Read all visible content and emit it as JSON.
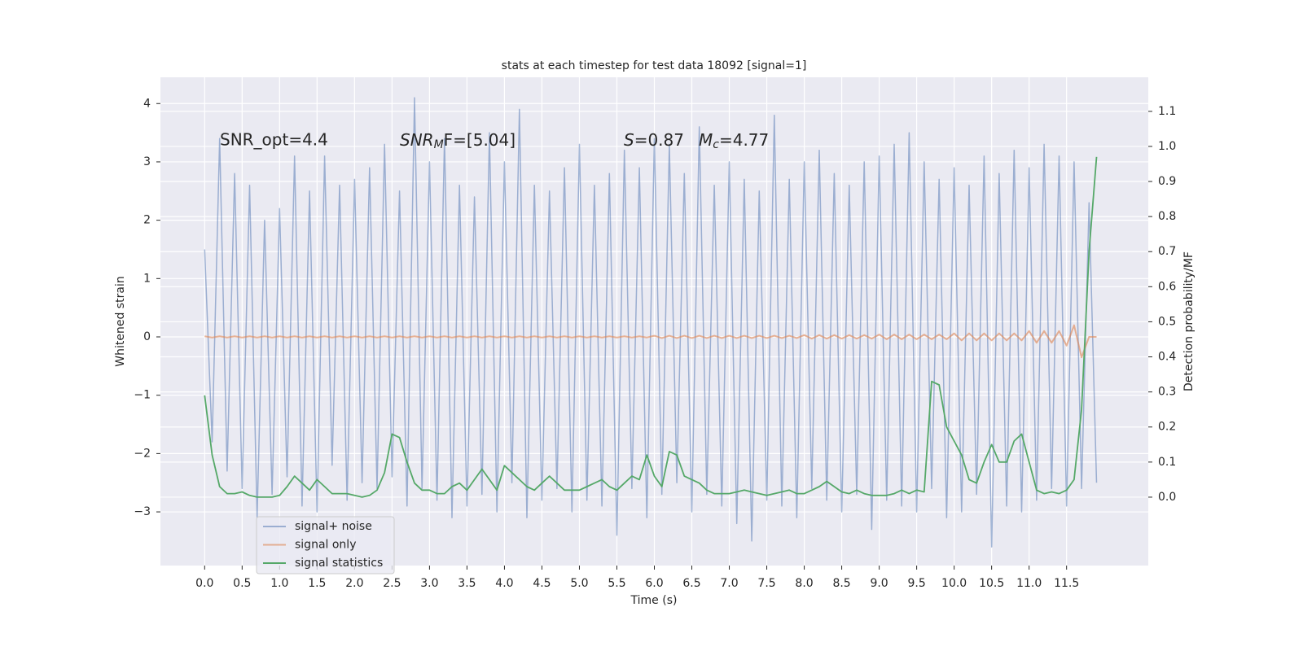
{
  "chart_data": {
    "type": "line",
    "title": "stats at each timestep for test data 18092 [signal=1]",
    "xlabel": "Time (s)",
    "ylabel": "Whitened strain",
    "y2label": "Detection probability/MF",
    "annotations": [
      {
        "text": "SNR_opt=4.4"
      },
      {
        "base": "SNR",
        "sub": "M",
        "rest": "F=[5.04]"
      },
      {
        "base": "S",
        "rest": "=0.87"
      },
      {
        "base": "M",
        "sub": "c",
        "rest": "=4.77"
      }
    ],
    "x": [
      0.0,
      0.1,
      0.2,
      0.3,
      0.4,
      0.5,
      0.6,
      0.7,
      0.8,
      0.9,
      1.0,
      1.1,
      1.2,
      1.3,
      1.4,
      1.5,
      1.6,
      1.7,
      1.8,
      1.9,
      2.0,
      2.1,
      2.2,
      2.3,
      2.4,
      2.5,
      2.6,
      2.7,
      2.8,
      2.9,
      3.0,
      3.1,
      3.2,
      3.3,
      3.4,
      3.5,
      3.6,
      3.7,
      3.8,
      3.9,
      4.0,
      4.1,
      4.2,
      4.3,
      4.4,
      4.5,
      4.6,
      4.7,
      4.8,
      4.9,
      5.0,
      5.1,
      5.2,
      5.3,
      5.4,
      5.5,
      5.6,
      5.7,
      5.8,
      5.9,
      6.0,
      6.1,
      6.2,
      6.3,
      6.4,
      6.5,
      6.6,
      6.7,
      6.8,
      6.9,
      7.0,
      7.1,
      7.2,
      7.3,
      7.4,
      7.5,
      7.6,
      7.7,
      7.8,
      7.9,
      8.0,
      8.1,
      8.2,
      8.3,
      8.4,
      8.5,
      8.6,
      8.7,
      8.8,
      8.9,
      9.0,
      9.1,
      9.2,
      9.3,
      9.4,
      9.5,
      9.6,
      9.7,
      9.8,
      9.9,
      10.0,
      10.1,
      10.2,
      10.3,
      10.4,
      10.5,
      10.6,
      10.7,
      10.8,
      10.9,
      11.0,
      11.1,
      11.2,
      11.3,
      11.4,
      11.5,
      11.6,
      11.7,
      11.8,
      11.9
    ],
    "series": [
      {
        "name": "signal+ noise",
        "color": "#4c72b0",
        "values": [
          1.5,
          -1.8,
          3.4,
          -2.3,
          2.8,
          -2.6,
          2.6,
          -3.1,
          2.0,
          -2.7,
          2.2,
          -2.4,
          3.1,
          -2.9,
          2.5,
          -3.0,
          3.1,
          -2.2,
          2.6,
          -2.8,
          2.7,
          -2.5,
          2.9,
          -2.6,
          3.3,
          -2.4,
          2.5,
          -2.9,
          4.1,
          -2.6,
          3.0,
          -2.8,
          3.4,
          -3.1,
          2.6,
          -2.9,
          2.4,
          -2.7,
          3.5,
          -3.0,
          3.0,
          -2.5,
          3.9,
          -3.1,
          2.6,
          -2.8,
          2.5,
          -2.6,
          2.9,
          -3.0,
          3.3,
          -2.8,
          2.6,
          -2.9,
          2.8,
          -3.4,
          3.2,
          -2.6,
          2.9,
          -3.1,
          3.4,
          -2.7,
          3.3,
          -2.5,
          2.8,
          -3.0,
          3.6,
          -2.7,
          2.6,
          -2.9,
          3.0,
          -3.2,
          2.7,
          -3.5,
          2.5,
          -2.8,
          3.8,
          -2.9,
          2.7,
          -3.1,
          3.0,
          -2.6,
          3.2,
          -2.8,
          2.8,
          -3.0,
          2.6,
          -2.7,
          3.0,
          -3.3,
          3.1,
          -2.8,
          3.3,
          -2.9,
          3.5,
          -3.0,
          3.0,
          -2.6,
          2.7,
          -3.1,
          2.9,
          -3.0,
          2.6,
          -2.7,
          3.1,
          -3.6,
          2.8,
          -2.9,
          3.2,
          -3.0,
          2.9,
          -2.8,
          3.3,
          -2.6,
          3.1,
          -2.9,
          3.0,
          -2.6,
          2.3,
          -2.5
        ]
      },
      {
        "name": "signal only",
        "color": "#dd8452",
        "values": [
          0.01,
          -0.01,
          0.01,
          -0.01,
          0.01,
          -0.01,
          0.01,
          -0.01,
          0.01,
          -0.01,
          0.01,
          -0.01,
          0.01,
          -0.01,
          0.01,
          -0.01,
          0.01,
          -0.01,
          0.01,
          -0.01,
          0.01,
          -0.01,
          0.01,
          -0.01,
          0.01,
          -0.01,
          0.01,
          -0.01,
          0.01,
          -0.01,
          0.01,
          -0.01,
          0.01,
          -0.01,
          0.01,
          -0.01,
          0.01,
          -0.01,
          0.01,
          -0.01,
          0.01,
          -0.01,
          0.01,
          -0.01,
          0.01,
          -0.01,
          0.01,
          -0.01,
          0.01,
          -0.01,
          0.01,
          -0.01,
          0.01,
          -0.01,
          0.01,
          -0.01,
          0.01,
          -0.01,
          0.01,
          -0.01,
          0.02,
          -0.02,
          0.02,
          -0.02,
          0.02,
          -0.02,
          0.02,
          -0.02,
          0.02,
          -0.02,
          0.02,
          -0.02,
          0.02,
          -0.02,
          0.02,
          -0.02,
          0.02,
          -0.02,
          0.02,
          -0.02,
          0.03,
          -0.03,
          0.03,
          -0.03,
          0.03,
          -0.03,
          0.03,
          -0.03,
          0.03,
          -0.03,
          0.04,
          -0.04,
          0.04,
          -0.04,
          0.04,
          -0.04,
          0.04,
          -0.04,
          0.04,
          -0.04,
          0.06,
          -0.06,
          0.06,
          -0.06,
          0.06,
          -0.06,
          0.06,
          -0.06,
          0.06,
          -0.06,
          0.1,
          -0.1,
          0.1,
          -0.1,
          0.1,
          -0.15,
          0.2,
          -0.35,
          0.0,
          0.0
        ]
      },
      {
        "name": "signal statistics",
        "color": "#55a868",
        "axis": "y2",
        "values": [
          0.29,
          0.12,
          0.03,
          0.01,
          0.01,
          0.015,
          0.005,
          0.0,
          0.0,
          0.0,
          0.005,
          0.03,
          0.06,
          0.04,
          0.02,
          0.05,
          0.03,
          0.01,
          0.01,
          0.01,
          0.005,
          0.0,
          0.005,
          0.02,
          0.07,
          0.18,
          0.17,
          0.1,
          0.04,
          0.02,
          0.02,
          0.01,
          0.01,
          0.03,
          0.04,
          0.02,
          0.05,
          0.08,
          0.05,
          0.02,
          0.09,
          0.07,
          0.05,
          0.03,
          0.02,
          0.04,
          0.06,
          0.04,
          0.02,
          0.02,
          0.02,
          0.03,
          0.04,
          0.05,
          0.03,
          0.02,
          0.04,
          0.06,
          0.05,
          0.12,
          0.06,
          0.03,
          0.13,
          0.12,
          0.06,
          0.05,
          0.04,
          0.02,
          0.01,
          0.01,
          0.01,
          0.015,
          0.02,
          0.015,
          0.01,
          0.005,
          0.01,
          0.015,
          0.02,
          0.01,
          0.01,
          0.02,
          0.03,
          0.045,
          0.03,
          0.015,
          0.01,
          0.02,
          0.01,
          0.005,
          0.005,
          0.005,
          0.01,
          0.02,
          0.01,
          0.02,
          0.015,
          0.33,
          0.32,
          0.2,
          0.16,
          0.12,
          0.05,
          0.04,
          0.1,
          0.15,
          0.1,
          0.1,
          0.16,
          0.18,
          0.1,
          0.02,
          0.01,
          0.015,
          0.01,
          0.02,
          0.05,
          0.25,
          0.7,
          0.97
        ]
      }
    ],
    "xlim": [
      -0.59,
      12.59
    ],
    "ylim": [
      -3.92,
      4.45
    ],
    "y2lim": [
      -0.195,
      1.197
    ],
    "xticks": [
      {
        "value": 0,
        "label": "0.0"
      },
      0.5,
      {
        "value": 1,
        "label": "1.0"
      },
      1.5,
      {
        "value": 2,
        "label": "2.0"
      },
      2.5,
      {
        "value": 3,
        "label": "3.0"
      },
      3.5,
      {
        "value": 4,
        "label": "4.0"
      },
      4.5,
      {
        "value": 5,
        "label": "5.0"
      },
      5.5,
      {
        "value": 6,
        "label": "6.0"
      },
      6.5,
      {
        "value": 7,
        "label": "7.0"
      },
      7.5,
      {
        "value": 8,
        "label": "8.0"
      },
      8.5,
      {
        "value": 9,
        "label": "9.0"
      },
      9.5,
      {
        "value": 10,
        "label": "10.0"
      },
      10.5,
      {
        "value": 11,
        "label": "11.0"
      },
      11.5
    ],
    "yticks": [
      {
        "value": -3,
        "label": "−3"
      },
      {
        "value": -2,
        "label": "−2"
      },
      {
        "value": -1,
        "label": "−1"
      },
      0,
      1,
      2,
      3,
      4
    ],
    "y2ticks": [
      {
        "value": 0,
        "label": "0.0"
      },
      0.1,
      0.2,
      0.3,
      0.4,
      0.5,
      0.6,
      0.7,
      0.8,
      0.9,
      {
        "value": 1,
        "label": "1.0"
      },
      1.1
    ],
    "grid": true,
    "legend": "lower left"
  }
}
